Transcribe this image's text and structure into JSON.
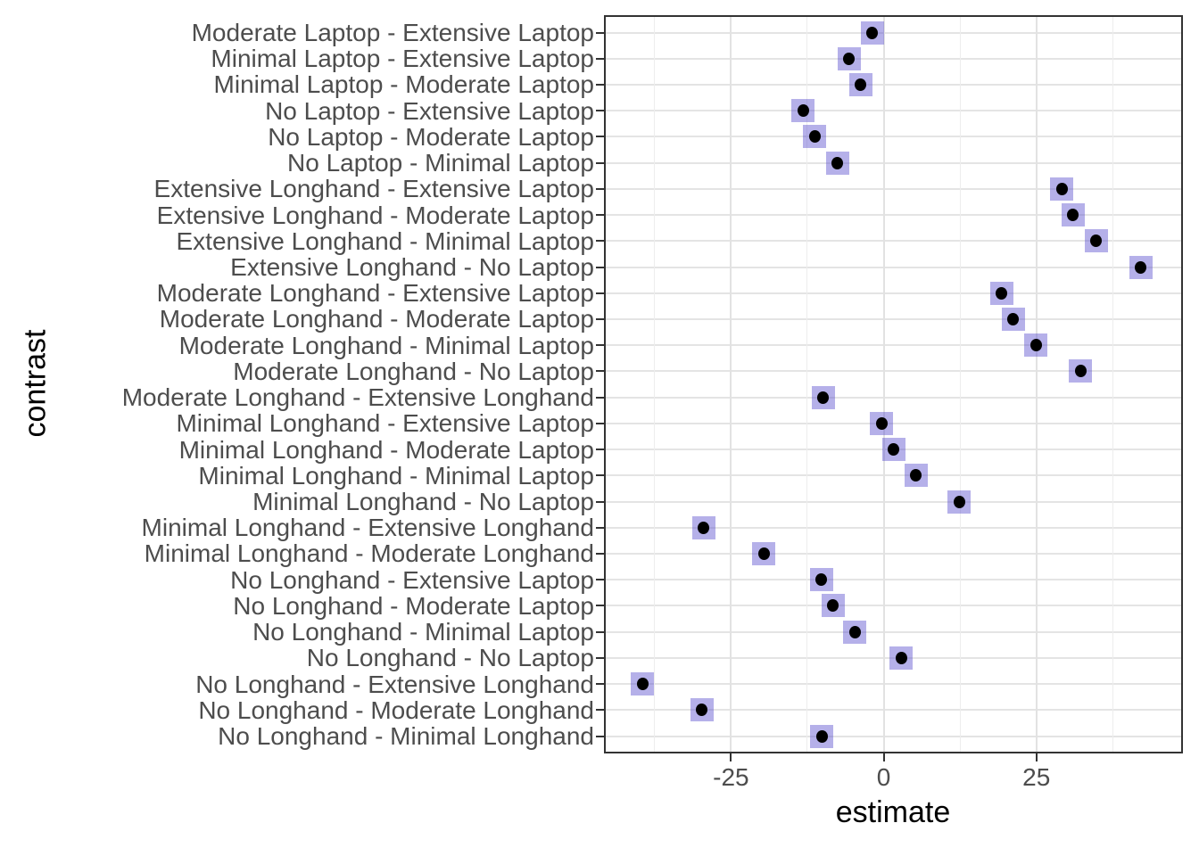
{
  "chart_data": {
    "type": "scatter",
    "subtype": "horizontal-dot-plot-with-interval-boxes",
    "title": "",
    "xlabel": "estimate",
    "ylabel": "contrast",
    "xlim": [
      -45.5,
      48.7
    ],
    "x_major_ticks": [
      -25,
      0,
      25
    ],
    "x_major_tick_labels": [
      "-25",
      "0",
      "25"
    ],
    "x_minor_ticks": [
      -37.5,
      -12.5,
      12.5,
      37.5
    ],
    "grid": "on",
    "legend": "none",
    "interval_halfwidth": 1.9,
    "points": [
      {
        "contrast": "Moderate Laptop - Extensive Laptop",
        "estimate": -1.9
      },
      {
        "contrast": "Minimal Laptop - Extensive Laptop",
        "estimate": -5.7
      },
      {
        "contrast": "Minimal Laptop - Moderate Laptop",
        "estimate": -3.8
      },
      {
        "contrast": "No Laptop - Extensive Laptop",
        "estimate": -13.2
      },
      {
        "contrast": "No Laptop - Moderate Laptop",
        "estimate": -11.3
      },
      {
        "contrast": "No Laptop - Minimal Laptop",
        "estimate": -7.6
      },
      {
        "contrast": "Extensive Longhand - Extensive Laptop",
        "estimate": 29.2
      },
      {
        "contrast": "Extensive Longhand - Moderate Laptop",
        "estimate": 31.0
      },
      {
        "contrast": "Extensive Longhand - Minimal Laptop",
        "estimate": 34.8
      },
      {
        "contrast": "Extensive Longhand - No Laptop",
        "estimate": 42.1
      },
      {
        "contrast": "Moderate Longhand - Extensive Laptop",
        "estimate": 19.3
      },
      {
        "contrast": "Moderate Longhand - Moderate Laptop",
        "estimate": 21.2
      },
      {
        "contrast": "Moderate Longhand - Minimal Laptop",
        "estimate": 24.9
      },
      {
        "contrast": "Moderate Longhand - No Laptop",
        "estimate": 32.2
      },
      {
        "contrast": "Moderate Longhand - Extensive Longhand",
        "estimate": -9.9
      },
      {
        "contrast": "Minimal Longhand - Extensive Laptop",
        "estimate": -0.3
      },
      {
        "contrast": "Minimal Longhand - Moderate Laptop",
        "estimate": 1.6
      },
      {
        "contrast": "Minimal Longhand - Minimal Laptop",
        "estimate": 5.3
      },
      {
        "contrast": "Minimal Longhand - No Laptop",
        "estimate": 12.4
      },
      {
        "contrast": "Minimal Longhand - Extensive Longhand",
        "estimate": -29.5
      },
      {
        "contrast": "Minimal Longhand - Moderate Longhand",
        "estimate": -19.6
      },
      {
        "contrast": "No Longhand - Extensive Laptop",
        "estimate": -10.2
      },
      {
        "contrast": "No Longhand - Moderate Laptop",
        "estimate": -8.3
      },
      {
        "contrast": "No Longhand - Minimal Laptop",
        "estimate": -4.7
      },
      {
        "contrast": "No Longhand - No Laptop",
        "estimate": 2.9
      },
      {
        "contrast": "No Longhand - Extensive Longhand",
        "estimate": -39.5
      },
      {
        "contrast": "No Longhand - Moderate Longhand",
        "estimate": -29.8
      },
      {
        "contrast": "No Longhand - Minimal Longhand",
        "estimate": -10.1
      }
    ]
  },
  "colors": {
    "interval_box": "#b5afe8",
    "point": "#000000",
    "grid_major": "#e3e3e3",
    "grid_minor": "#ededed",
    "panel_border": "#333333",
    "axis_text": "#4d4d4d",
    "axis_title": "#000000",
    "background": "#ffffff"
  }
}
